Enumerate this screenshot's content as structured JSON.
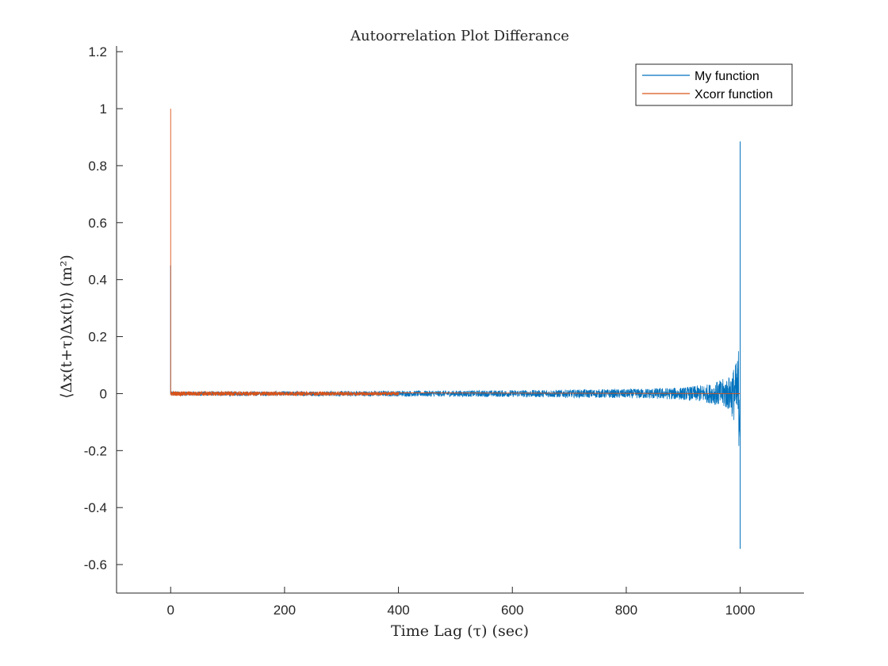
{
  "chart_data": {
    "type": "line",
    "title": "Autoorrelation Plot Differance",
    "xlabel": "Time Lag (τ) (sec)",
    "ylabel": "⟨Δx(t+τ)Δx(t)⟩ (m²)",
    "xlim": [
      -95,
      1112
    ],
    "ylim": [
      -0.7,
      1.22
    ],
    "xticks": [
      0,
      200,
      400,
      600,
      800,
      1000
    ],
    "yticks": [
      -0.6,
      -0.4,
      -0.2,
      0,
      0.2,
      0.4,
      0.6,
      0.8,
      1,
      1.2
    ],
    "xtick_labels": [
      "0",
      "200",
      "400",
      "600",
      "800",
      "1000"
    ],
    "ytick_labels": [
      "-0.6",
      "-0.4",
      "-0.2",
      "0",
      "0.2",
      "0.4",
      "0.6",
      "0.8",
      "1",
      "1.2"
    ],
    "grid": false,
    "legend_position": "top-right",
    "series": [
      {
        "name": "My function",
        "color": "#0072BD",
        "noise_envelope": {
          "x": [
            0,
            200,
            400,
            600,
            800,
            900,
            950,
            980,
            995,
            1000
          ],
          "amplitude": [
            0.008,
            0.008,
            0.01,
            0.012,
            0.016,
            0.022,
            0.035,
            0.06,
            0.12,
            0.25
          ]
        },
        "peaks": [
          {
            "x": 0,
            "y": 0.45
          },
          {
            "x": 1000,
            "y": 0.885
          },
          {
            "x": 1000,
            "y": -0.545
          }
        ]
      },
      {
        "name": "Xcorr function",
        "color": "#D95319",
        "noise_envelope": {
          "x": [
            0,
            400,
            1000
          ],
          "amplitude": [
            0.008,
            0.006,
            0.003
          ]
        },
        "visible_noise_until": 400,
        "peaks": [
          {
            "x": 0,
            "y": 1.0
          }
        ]
      }
    ]
  }
}
